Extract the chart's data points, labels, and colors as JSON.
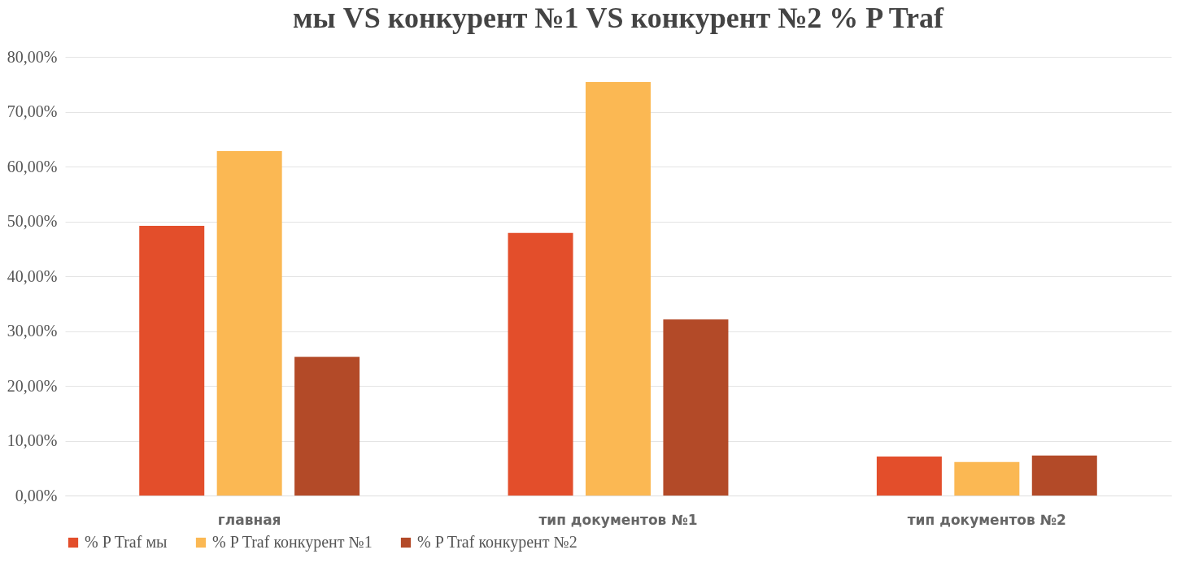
{
  "chart_data": {
    "type": "bar",
    "title": "мы VS конкурент №1 VS конкурент №2 % P Traf",
    "categories": [
      "главная",
      "тип документов №1",
      "тип документов №2"
    ],
    "series": [
      {
        "name": "% P Traf мы",
        "color": "#e34e2b",
        "values": [
          49.2,
          47.9,
          7.1
        ]
      },
      {
        "name": "% P Traf конкурент №1",
        "color": "#fbb853",
        "values": [
          62.8,
          75.4,
          6.1
        ]
      },
      {
        "name": "% P Traf конкурент №2",
        "color": "#b34a28",
        "values": [
          25.3,
          32.1,
          7.3
        ]
      }
    ],
    "ylim": [
      0,
      80
    ],
    "yticks": [
      {
        "value": 0,
        "label": "0,00%"
      },
      {
        "value": 10,
        "label": "10,00%"
      },
      {
        "value": 20,
        "label": "20,00%"
      },
      {
        "value": 30,
        "label": "30,00%"
      },
      {
        "value": 40,
        "label": "40,00%"
      },
      {
        "value": 50,
        "label": "50,00%"
      },
      {
        "value": 60,
        "label": "60,00%"
      },
      {
        "value": 70,
        "label": "70,00%"
      },
      {
        "value": 80,
        "label": "80,00%"
      }
    ],
    "grid": "y",
    "legend": "bottom"
  }
}
